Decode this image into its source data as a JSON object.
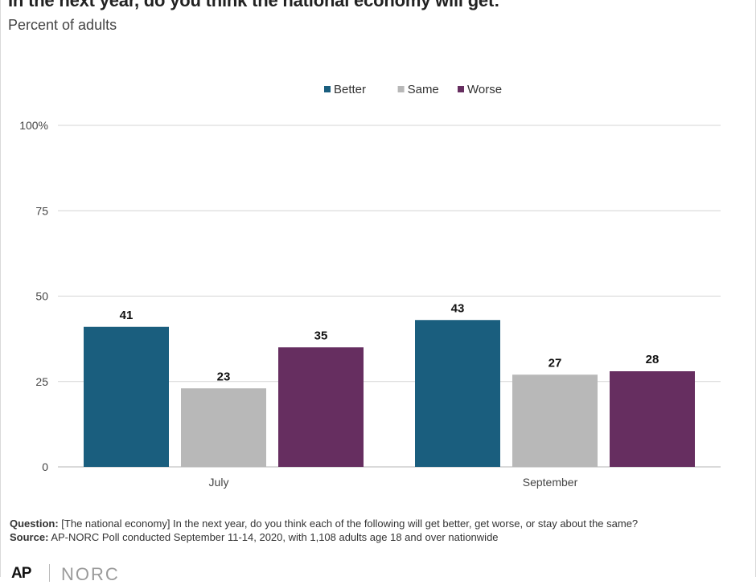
{
  "header": {
    "title": "In the next year, do you think the national economy will get:",
    "subtitle": "Percent of adults"
  },
  "footer": {
    "question_label": "Question:",
    "question_text": "[The national economy] In the next year, do you think each of the following will get better, get worse, or stay about the same?",
    "source_label": "Source:",
    "source_text": "AP-NORC Poll conducted September 11-14, 2020, with 1,108 adults age 18 and over nationwide",
    "logo_ap": "AP",
    "logo_norc": "NORC"
  },
  "chart_data": {
    "type": "bar",
    "title": "In the next year, do you think the national economy will get:",
    "subtitle": "Percent of adults",
    "categories": [
      "July",
      "September"
    ],
    "series": [
      {
        "name": "Better",
        "values": [
          41,
          43
        ],
        "color": "#1a5e7e"
      },
      {
        "name": "Same",
        "values": [
          23,
          27
        ],
        "color": "#b8b8b8"
      },
      {
        "name": "Worse",
        "values": [
          35,
          28
        ],
        "color": "#662e60"
      }
    ],
    "ylim": [
      0,
      100
    ],
    "yticks": [
      0,
      25,
      50,
      75,
      100
    ],
    "ytick_labels": [
      "0",
      "25",
      "50",
      "75",
      "100%"
    ],
    "grid": true,
    "legend_position": "top-center",
    "data_labels": true
  }
}
